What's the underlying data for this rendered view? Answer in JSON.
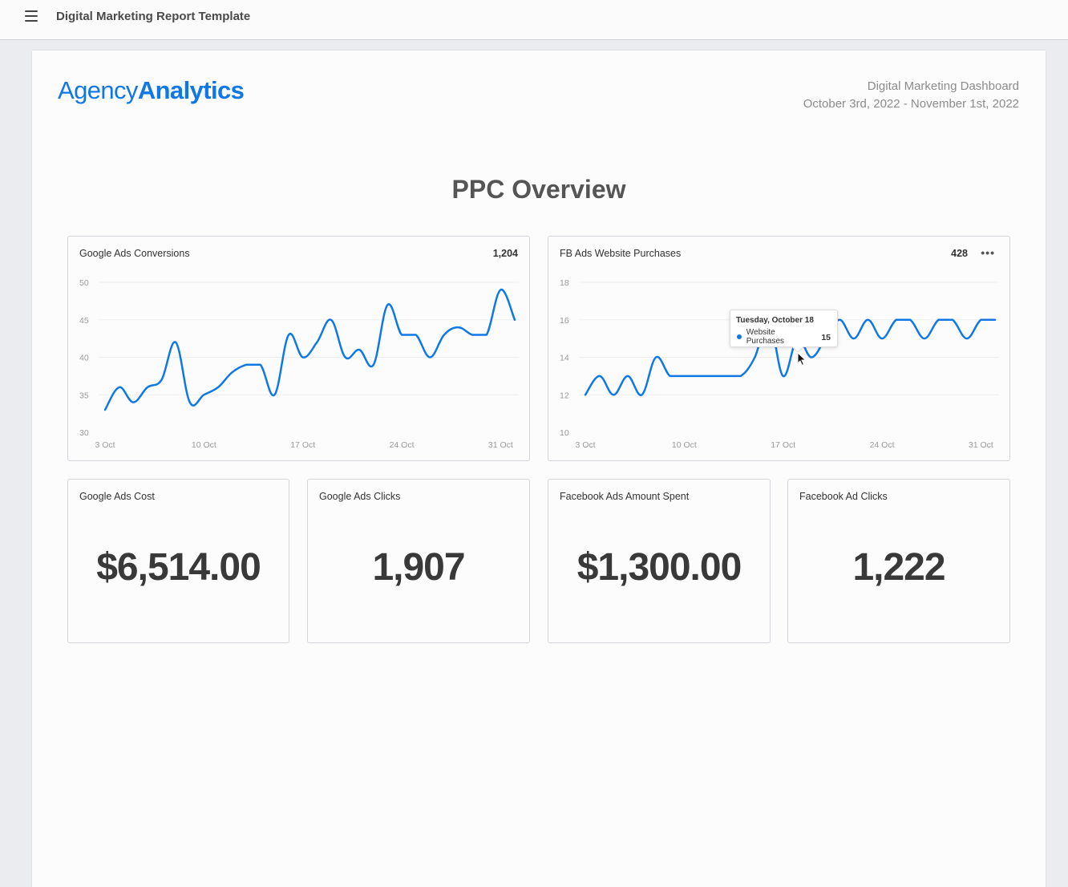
{
  "topbar": {
    "menu_icon": "hamburger-menu-icon",
    "title": "Digital Marketing Report Template"
  },
  "header": {
    "logo_light": "Agency",
    "logo_bold": "Analytics",
    "report_name": "Digital Marketing Dashboard",
    "date_range": "October 3rd, 2022 - November 1st, 2022"
  },
  "section": {
    "title": "PPC Overview"
  },
  "colors": {
    "accent": "#0f78e6",
    "text_dark": "#393939",
    "border": "#d3d6da",
    "background": "#ebecf0"
  },
  "charts": [
    {
      "title": "Google Ads Conversions",
      "total": "1,204"
    },
    {
      "title": "FB Ads Website Purchases",
      "total": "428",
      "more_icon": "more-horizontal-icon",
      "tooltip": {
        "date": "Tuesday, October 18",
        "series": "Website Purchases",
        "value": "15"
      }
    }
  ],
  "metrics": [
    {
      "title": "Google Ads Cost",
      "value": "$6,514.00"
    },
    {
      "title": "Google Ads Clicks",
      "value": "1,907"
    },
    {
      "title": "Facebook Ads Amount Spent",
      "value": "$1,300.00"
    },
    {
      "title": "Facebook Ad Clicks",
      "value": "1,222"
    }
  ],
  "chart_data": [
    {
      "type": "line",
      "title": "Google Ads Conversions",
      "total": 1204,
      "xlabel": "",
      "ylabel": "",
      "x": [
        "3 Oct",
        "4 Oct",
        "5 Oct",
        "6 Oct",
        "7 Oct",
        "8 Oct",
        "9 Oct",
        "10 Oct",
        "11 Oct",
        "12 Oct",
        "13 Oct",
        "14 Oct",
        "15 Oct",
        "16 Oct",
        "17 Oct",
        "18 Oct",
        "19 Oct",
        "20 Oct",
        "21 Oct",
        "22 Oct",
        "23 Oct",
        "24 Oct",
        "25 Oct",
        "26 Oct",
        "27 Oct",
        "28 Oct",
        "29 Oct",
        "30 Oct",
        "31 Oct",
        "1 Nov"
      ],
      "series": [
        {
          "name": "Conversions",
          "color": "#0f78e6",
          "values": [
            33,
            36,
            34,
            36,
            37,
            42,
            34,
            35,
            36,
            38,
            39,
            39,
            35,
            43,
            40,
            42,
            45,
            40,
            41,
            39,
            47,
            43,
            43,
            40,
            43,
            44,
            43,
            43,
            49,
            45
          ]
        }
      ],
      "xticks": [
        "3 Oct",
        "10 Oct",
        "17 Oct",
        "24 Oct",
        "31 Oct"
      ],
      "yticks": [
        30,
        35,
        40,
        45,
        50
      ],
      "ylim": [
        30,
        50
      ],
      "grid": true,
      "legend": "none"
    },
    {
      "type": "line",
      "title": "FB Ads Website Purchases",
      "total": 428,
      "xlabel": "",
      "ylabel": "",
      "x": [
        "3 Oct",
        "4 Oct",
        "5 Oct",
        "6 Oct",
        "7 Oct",
        "8 Oct",
        "9 Oct",
        "10 Oct",
        "11 Oct",
        "12 Oct",
        "13 Oct",
        "14 Oct",
        "15 Oct",
        "16 Oct",
        "17 Oct",
        "18 Oct",
        "19 Oct",
        "20 Oct",
        "21 Oct",
        "22 Oct",
        "23 Oct",
        "24 Oct",
        "25 Oct",
        "26 Oct",
        "27 Oct",
        "28 Oct",
        "29 Oct",
        "30 Oct",
        "31 Oct",
        "1 Nov"
      ],
      "series": [
        {
          "name": "Website Purchases",
          "color": "#0f78e6",
          "values": [
            12,
            13,
            12,
            13,
            12,
            14,
            13,
            13,
            13,
            13,
            13,
            13,
            14,
            16,
            13,
            15,
            14,
            15,
            16,
            15,
            16,
            15,
            16,
            16,
            15,
            16,
            16,
            15,
            16,
            16
          ]
        }
      ],
      "xticks": [
        "3 Oct",
        "10 Oct",
        "17 Oct",
        "24 Oct",
        "31 Oct"
      ],
      "yticks": [
        10,
        12,
        14,
        16,
        18
      ],
      "ylim": [
        10,
        18
      ],
      "grid": true,
      "legend": "none",
      "annotation": {
        "tooltip_date": "Tuesday, October 18",
        "series": "Website Purchases",
        "value": 15
      }
    }
  ]
}
